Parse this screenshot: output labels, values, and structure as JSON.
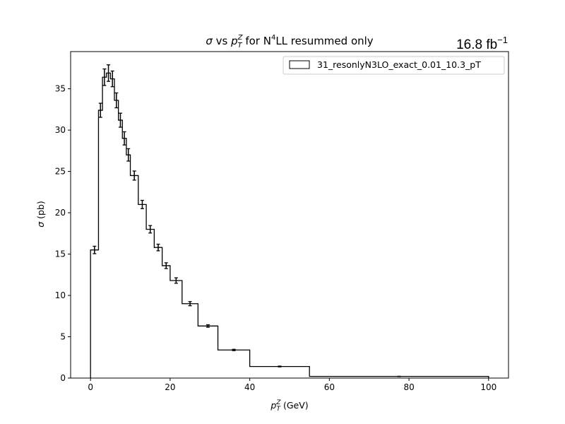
{
  "chart_data": {
    "type": "histogram",
    "title_parts": {
      "sigma": "σ",
      "vs": " vs ",
      "p": "p",
      "sup": "Z",
      "sub": "T",
      "rest_before_sup": " for N",
      "order_sup": "4",
      "rest_after_sup": "LL resummed only"
    },
    "lumi_label": {
      "main": "16.8 fb",
      "sup": "−1"
    },
    "xlabel_parts": {
      "p": "p",
      "sup": "Z",
      "sub": "T",
      "unit": " (GeV)"
    },
    "ylabel_parts": {
      "sigma": "σ",
      "unit": " (pb)"
    },
    "xlim": [
      -5,
      105
    ],
    "ylim": [
      0,
      39.5
    ],
    "x_ticks": [
      0,
      20,
      40,
      60,
      80,
      100
    ],
    "y_ticks": [
      0,
      5,
      10,
      15,
      20,
      25,
      30,
      35
    ],
    "grid": false,
    "legend": {
      "position": "top-right",
      "entries": [
        "31_resonlyN3LO_exact_0.01_10.3_pT"
      ]
    },
    "series": [
      {
        "name": "31_resonlyN3LO_exact_0.01_10.3_pT",
        "color": "#000000",
        "bin_edges": [
          0,
          2,
          3,
          4,
          5,
          6,
          7,
          8,
          9,
          10,
          12,
          14,
          16,
          18,
          20,
          23,
          27,
          32,
          40,
          55,
          100
        ],
        "values": [
          15.5,
          32.4,
          36.4,
          36.9,
          36.2,
          33.6,
          31.2,
          29.0,
          27.0,
          24.5,
          21.0,
          18.0,
          15.8,
          13.6,
          11.8,
          9.0,
          6.3,
          3.4,
          1.4,
          0.2
        ],
        "errors": [
          0.45,
          0.85,
          1.0,
          1.0,
          0.95,
          0.9,
          0.85,
          0.8,
          0.75,
          0.55,
          0.5,
          0.45,
          0.4,
          0.35,
          0.33,
          0.25,
          0.15,
          0.08,
          0.05,
          0.02
        ]
      }
    ]
  }
}
